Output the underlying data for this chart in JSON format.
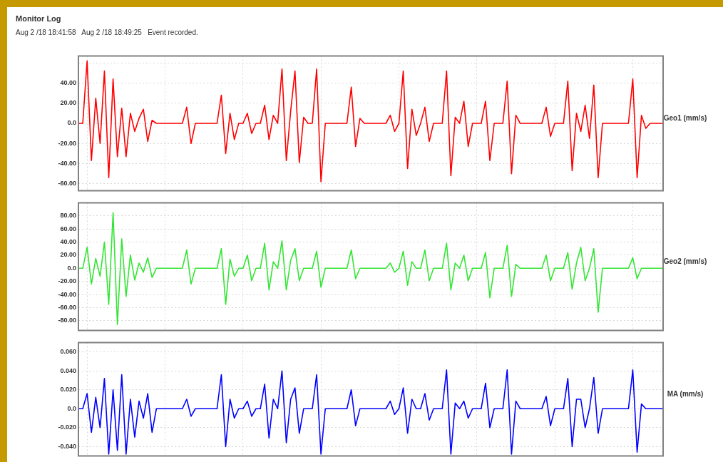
{
  "chart_data": [
    {
      "type": "line",
      "title": "Monitor Log",
      "subtitle": "Aug 2 /18 18:41:58   Aug 2 /18 18:49:25   Event recorded.",
      "ylabel": "Geo1 (mm/s)",
      "color": "#ff0000",
      "grid": true,
      "tick_labels": "y",
      "ylim": [
        -67,
        67
      ],
      "yticks": [
        {
          "value": 60,
          "label": null
        },
        {
          "value": 40,
          "label": "40.00"
        },
        {
          "value": 20,
          "label": "20.00"
        },
        {
          "value": 0,
          "label": "0.0"
        },
        {
          "value": -20,
          "label": "-20.00"
        },
        {
          "value": -40,
          "label": "-40.00"
        },
        {
          "value": -60,
          "label": "-60.00"
        }
      ],
      "categories": [
        null,
        null,
        null,
        null,
        null,
        null,
        null,
        null,
        null,
        null,
        null,
        null,
        null,
        null,
        null,
        null,
        null,
        null,
        null,
        null,
        null,
        null,
        null,
        null,
        null,
        null,
        null,
        null,
        null,
        null,
        null,
        null,
        null,
        null,
        null,
        null,
        null,
        null,
        null,
        null,
        null,
        null,
        null,
        null,
        null,
        null,
        null,
        null,
        null,
        null,
        null,
        null,
        null,
        null,
        null,
        null,
        null,
        null,
        null,
        null,
        null,
        null,
        null,
        null,
        null,
        null,
        null,
        null,
        null,
        null,
        null,
        null,
        null,
        null,
        null,
        null,
        null,
        null,
        null,
        null,
        null,
        null,
        null,
        null,
        null,
        null,
        null,
        null,
        null,
        null,
        null,
        null,
        null,
        null,
        null,
        null,
        null,
        null,
        null,
        null,
        null,
        null,
        null,
        null,
        null,
        null,
        null,
        null,
        null,
        null,
        null,
        null,
        null,
        null,
        null,
        null,
        null,
        null,
        null,
        null,
        null,
        null,
        null,
        null,
        null,
        null,
        null,
        null,
        null,
        null,
        null,
        null,
        null,
        null,
        null,
        null
      ],
      "values": [
        0,
        0,
        62,
        -37,
        25,
        -20,
        52,
        -54,
        44,
        -33,
        15,
        -33,
        10,
        -8,
        5,
        14,
        -18,
        3,
        0,
        0,
        0,
        0,
        0,
        0,
        0,
        16,
        -20,
        0,
        0,
        0,
        0,
        0,
        0,
        28,
        -30,
        10,
        -16,
        0,
        0,
        10,
        -10,
        0,
        0,
        18,
        -16,
        8,
        0,
        54,
        -37,
        12,
        52,
        -39,
        6,
        0,
        0,
        54,
        -58,
        0,
        0,
        0,
        0,
        0,
        0,
        36,
        -23,
        5,
        0,
        0,
        0,
        0,
        0,
        0,
        8,
        -8,
        0,
        52,
        -45,
        14,
        -12,
        0,
        16,
        -18,
        0,
        0,
        0,
        52,
        -52,
        6,
        0,
        22,
        -23,
        0,
        0,
        0,
        22,
        -37,
        0,
        0,
        0,
        42,
        -50,
        8,
        0,
        0,
        0,
        0,
        0,
        0,
        16,
        -13,
        0,
        0,
        0,
        42,
        -47,
        10,
        -8,
        18,
        -15,
        38,
        -54,
        0,
        0,
        0,
        0,
        0,
        0,
        0,
        44,
        -54,
        8,
        -5,
        0,
        0,
        0,
        0
      ]
    },
    {
      "type": "line",
      "ylabel": "Geo2 (mm/s)",
      "color": "#33e633",
      "grid": true,
      "tick_labels": "y",
      "ylim": [
        -95,
        100
      ],
      "yticks": [
        {
          "value": 80,
          "label": "80.00"
        },
        {
          "value": 60,
          "label": "60.00"
        },
        {
          "value": 40,
          "label": "40.00"
        },
        {
          "value": 20,
          "label": "20.00"
        },
        {
          "value": 0,
          "label": "0.0"
        },
        {
          "value": -20,
          "label": "-20.00"
        },
        {
          "value": -40,
          "label": "-40.00"
        },
        {
          "value": -60,
          "label": "-60.00"
        },
        {
          "value": -80,
          "label": "-80.00"
        }
      ],
      "categories": [
        null,
        null,
        null,
        null,
        null,
        null,
        null,
        null,
        null,
        null,
        null,
        null,
        null,
        null,
        null,
        null,
        null,
        null,
        null,
        null,
        null,
        null,
        null,
        null,
        null,
        null,
        null,
        null,
        null,
        null,
        null,
        null,
        null,
        null,
        null,
        null,
        null,
        null,
        null,
        null,
        null,
        null,
        null,
        null,
        null,
        null,
        null,
        null,
        null,
        null,
        null,
        null,
        null,
        null,
        null,
        null,
        null,
        null,
        null,
        null,
        null,
        null,
        null,
        null,
        null,
        null,
        null,
        null,
        null,
        null,
        null,
        null,
        null,
        null,
        null,
        null,
        null,
        null,
        null,
        null,
        null,
        null,
        null,
        null,
        null,
        null,
        null,
        null,
        null,
        null,
        null,
        null,
        null,
        null,
        null,
        null,
        null,
        null,
        null,
        null,
        null,
        null,
        null,
        null,
        null,
        null,
        null,
        null,
        null,
        null,
        null,
        null,
        null,
        null,
        null,
        null,
        null,
        null,
        null,
        null,
        null,
        null,
        null,
        null,
        null,
        null,
        null,
        null,
        null,
        null,
        null,
        null,
        null,
        null,
        null,
        null
      ],
      "values": [
        0,
        0,
        32,
        -24,
        15,
        -12,
        40,
        -55,
        85,
        -86,
        45,
        -43,
        20,
        -18,
        8,
        -6,
        16,
        -14,
        0,
        0,
        0,
        0,
        0,
        0,
        0,
        28,
        -24,
        0,
        0,
        0,
        0,
        0,
        0,
        30,
        -55,
        14,
        -12,
        0,
        0,
        20,
        -19,
        0,
        0,
        38,
        -33,
        10,
        0,
        42,
        -33,
        12,
        30,
        -19,
        0,
        0,
        0,
        26,
        -29,
        0,
        0,
        0,
        0,
        0,
        0,
        28,
        -16,
        0,
        0,
        0,
        0,
        0,
        0,
        0,
        8,
        -6,
        0,
        26,
        -26,
        10,
        0,
        0,
        28,
        -19,
        0,
        0,
        0,
        38,
        -33,
        8,
        0,
        20,
        -19,
        0,
        0,
        0,
        24,
        -45,
        0,
        0,
        0,
        35,
        -43,
        6,
        0,
        0,
        0,
        0,
        0,
        0,
        20,
        -19,
        0,
        0,
        0,
        24,
        -32,
        8,
        32,
        -19,
        0,
        30,
        -67,
        0,
        0,
        0,
        0,
        0,
        0,
        0,
        16,
        -16,
        0,
        0,
        0,
        0,
        0,
        0
      ]
    },
    {
      "type": "line",
      "ylabel": "MA (mm/s)",
      "color": "#0000ff",
      "grid": true,
      "tick_labels": "y",
      "ylim": [
        -0.05,
        0.07
      ],
      "yticks": [
        {
          "value": 0.06,
          "label": "0.060"
        },
        {
          "value": 0.04,
          "label": "0.040"
        },
        {
          "value": 0.02,
          "label": "0.020"
        },
        {
          "value": 0,
          "label": "0.0"
        },
        {
          "value": -0.02,
          "label": "-0.020"
        },
        {
          "value": -0.04,
          "label": "-0.040"
        }
      ],
      "categories": [
        null,
        null,
        null,
        null,
        null,
        null,
        null,
        null,
        null,
        null,
        null,
        null,
        null,
        null,
        null,
        null,
        null,
        null,
        null,
        null,
        null,
        null,
        null,
        null,
        null,
        null,
        null,
        null,
        null,
        null,
        null,
        null,
        null,
        null,
        null,
        null,
        null,
        null,
        null,
        null,
        null,
        null,
        null,
        null,
        null,
        null,
        null,
        null,
        null,
        null,
        null,
        null,
        null,
        null,
        null,
        null,
        null,
        null,
        null,
        null,
        null,
        null,
        null,
        null,
        null,
        null,
        null,
        null,
        null,
        null,
        null,
        null,
        null,
        null,
        null,
        null,
        null,
        null,
        null,
        null,
        null,
        null,
        null,
        null,
        null,
        null,
        null,
        null,
        null,
        null,
        null,
        null,
        null,
        null,
        null,
        null,
        null,
        null,
        null,
        null,
        null,
        null,
        null,
        null,
        null,
        null,
        null,
        null,
        null,
        null,
        null,
        null,
        null,
        null,
        null,
        null,
        null,
        null,
        null,
        null,
        null,
        null,
        null,
        null,
        null,
        null,
        null,
        null,
        null,
        null,
        null,
        null,
        null,
        null,
        null,
        null
      ],
      "values": [
        0,
        0,
        0.016,
        -0.025,
        0.012,
        -0.02,
        0.032,
        -0.048,
        0.02,
        -0.044,
        0.036,
        -0.048,
        0.01,
        -0.03,
        0.008,
        -0.01,
        0.016,
        -0.025,
        0,
        0,
        0,
        0,
        0,
        0,
        0,
        0.01,
        -0.008,
        0,
        0,
        0,
        0,
        0,
        0,
        0.036,
        -0.04,
        0.01,
        -0.01,
        0,
        0,
        0.008,
        -0.008,
        0,
        0,
        0.026,
        -0.031,
        0.01,
        0,
        0.04,
        -0.036,
        0.01,
        0.022,
        -0.026,
        0,
        0,
        0,
        0.036,
        -0.048,
        0,
        0,
        0,
        0,
        0,
        0,
        0.02,
        -0.018,
        0,
        0,
        0,
        0,
        0,
        0,
        0,
        0.008,
        -0.006,
        0,
        0.022,
        -0.026,
        0.01,
        0,
        0,
        0.016,
        -0.012,
        0,
        0,
        0,
        0.041,
        -0.048,
        0.006,
        0,
        0.008,
        -0.01,
        0,
        0,
        0,
        0.027,
        -0.02,
        0,
        0,
        0,
        0.041,
        -0.048,
        0.008,
        0,
        0,
        0,
        0,
        0,
        0,
        0.013,
        -0.018,
        0,
        0,
        0,
        0.032,
        -0.04,
        0.01,
        0.01,
        -0.02,
        0,
        0.033,
        -0.026,
        0,
        0,
        0,
        0,
        0,
        0,
        0,
        0.041,
        -0.046,
        0.005,
        0,
        0,
        0,
        0,
        0
      ]
    }
  ]
}
